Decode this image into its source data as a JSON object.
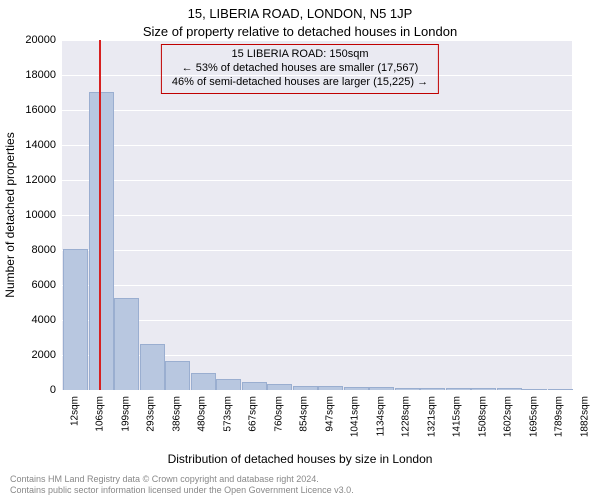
{
  "title_line1": "15, LIBERIA ROAD, LONDON, N5 1JP",
  "title_line2": "Size of property relative to detached houses in London",
  "annotation": {
    "line1": "15 LIBERIA ROAD: 150sqm",
    "line2": "← 53% of detached houses are smaller (17,567)",
    "line3": "46% of semi-detached houses are larger (15,225) →",
    "border_color": "#c00000"
  },
  "chart": {
    "type": "histogram",
    "background_color": "#eaeaf2",
    "grid_color": "#ffffff",
    "xlabel": "Distribution of detached houses by size in London",
    "ylabel": "Number of detached properties",
    "ylim": [
      0,
      20000
    ],
    "ytick_step": 2000,
    "yticks": [
      0,
      2000,
      4000,
      6000,
      8000,
      10000,
      12000,
      14000,
      16000,
      18000,
      20000
    ],
    "xticks": [
      "12sqm",
      "106sqm",
      "199sqm",
      "293sqm",
      "386sqm",
      "480sqm",
      "573sqm",
      "667sqm",
      "760sqm",
      "854sqm",
      "947sqm",
      "1041sqm",
      "1134sqm",
      "1228sqm",
      "1321sqm",
      "1415sqm",
      "1508sqm",
      "1602sqm",
      "1695sqm",
      "1789sqm",
      "1882sqm"
    ],
    "bar_color": "#b8c7e0",
    "bar_edge_color": "#9aaed0",
    "values": [
      8000,
      17000,
      5200,
      2600,
      1600,
      900,
      600,
      400,
      300,
      200,
      150,
      120,
      90,
      70,
      60,
      50,
      40,
      30,
      25,
      20
    ],
    "ref_line_index": 1.5,
    "ref_line_color": "#d62020",
    "label_fontsize": 12,
    "tick_fontsize": 11
  },
  "footer": {
    "line1": "Contains HM Land Registry data © Crown copyright and database right 2024.",
    "line2": "Contains public sector information licensed under the Open Government Licence v3.0.",
    "color": "#888888"
  }
}
